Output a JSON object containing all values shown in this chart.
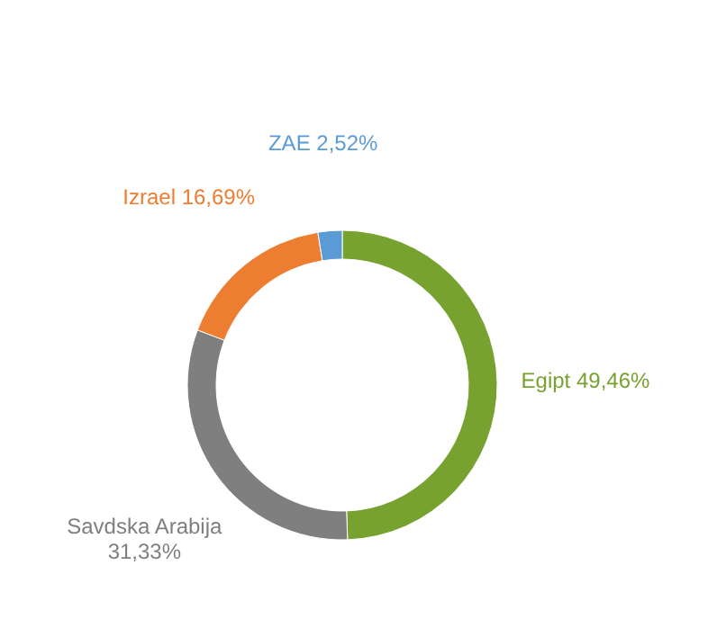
{
  "chart_data": {
    "type": "donut",
    "categories": [
      "Egipt",
      "Savdska Arabija",
      "Izrael",
      "ZAE"
    ],
    "values": [
      49.46,
      31.33,
      16.69,
      2.52
    ],
    "value_labels": [
      "49,46%",
      "31,33%",
      "16,69%",
      "2,52%"
    ],
    "colors": [
      "#77a22f",
      "#7f7f7f",
      "#ed7d31",
      "#5b9bd5"
    ],
    "legend": false
  }
}
